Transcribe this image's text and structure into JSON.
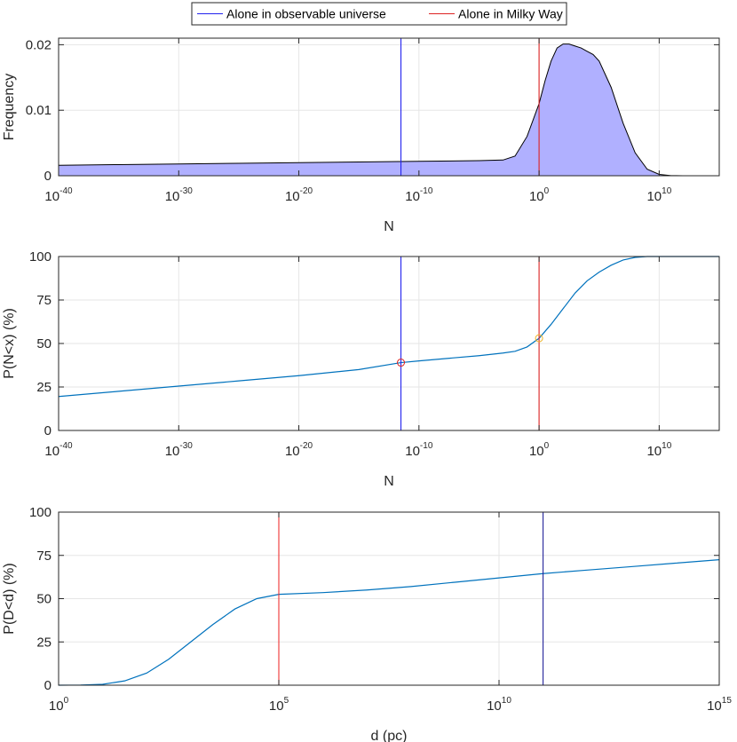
{
  "legend": {
    "items": [
      {
        "label": "Alone in observable universe",
        "color": "#2222ee"
      },
      {
        "label": "Alone in Milky Way",
        "color": "#dd2222"
      }
    ],
    "placement": "top-center"
  },
  "colors": {
    "series": "#0072bd",
    "histogram_fill": "#b0b0ff",
    "histogram_edge": "#000000",
    "grid": "#e6e6e6",
    "axes": "#262626"
  },
  "chart_data": [
    {
      "type": "area",
      "xlabel": "N",
      "ylabel": "Frequency",
      "xscale": "log",
      "xlim_exp": [
        -40,
        15
      ],
      "ylim": [
        0,
        0.021
      ],
      "yticks": [
        0,
        0.01,
        0.02
      ],
      "ytick_labels": [
        "0",
        "0.01",
        "0.02"
      ],
      "xtick_exps": [
        -40,
        -30,
        -20,
        -10,
        0,
        10
      ],
      "grid": true,
      "vlines": [
        {
          "name": "Alone in observable universe",
          "x_exp": -11.5
        },
        {
          "name": "Alone in Milky Way",
          "x_exp": 0
        }
      ],
      "x_exp": [
        -40,
        -35,
        -30,
        -25,
        -20,
        -15,
        -10,
        -5,
        -3,
        -2,
        -1,
        0,
        0.5,
        1,
        1.5,
        2,
        2.5,
        3,
        3.5,
        4,
        4.5,
        5,
        6,
        7,
        8,
        9,
        10,
        11,
        12,
        15
      ],
      "y": [
        0.0016,
        0.0017,
        0.0018,
        0.0019,
        0.002,
        0.0021,
        0.0022,
        0.0023,
        0.0024,
        0.003,
        0.006,
        0.011,
        0.0145,
        0.0175,
        0.0195,
        0.0201,
        0.0201,
        0.0198,
        0.0195,
        0.019,
        0.0185,
        0.0175,
        0.0135,
        0.008,
        0.0035,
        0.001,
        0.0002,
        2e-05,
        0,
        0
      ]
    },
    {
      "type": "line",
      "xlabel": "N",
      "ylabel": "P(N<x) (%)",
      "xscale": "log",
      "xlim_exp": [
        -40,
        15
      ],
      "ylim": [
        0,
        100
      ],
      "yticks": [
        0,
        25,
        50,
        75,
        100
      ],
      "xtick_exps": [
        -40,
        -30,
        -20,
        -10,
        0,
        10
      ],
      "grid": true,
      "vlines": [
        {
          "name": "Alone in observable universe",
          "x_exp": -11.5
        },
        {
          "name": "Alone in Milky Way",
          "x_exp": 0
        }
      ],
      "markers": [
        {
          "x_exp": -11.5,
          "y": 39,
          "color": "#dd2222"
        },
        {
          "x_exp": 0,
          "y": 53,
          "color": "#edb120"
        }
      ],
      "x_exp": [
        -40,
        -35,
        -30,
        -25,
        -20,
        -15,
        -11.5,
        -10,
        -5,
        -3,
        -2,
        -1,
        0,
        1,
        2,
        3,
        4,
        5,
        6,
        7,
        8,
        9,
        10,
        15
      ],
      "y": [
        19.5,
        22.5,
        25.5,
        28.5,
        31.5,
        35,
        39,
        40,
        43,
        44.5,
        45.5,
        48,
        53,
        61,
        70,
        79,
        86,
        91,
        95,
        98,
        99.5,
        100,
        100,
        100
      ]
    },
    {
      "type": "line",
      "xlabel": "d (pc)",
      "ylabel": "P(D<d) (%)",
      "xscale": "log",
      "xlim_exp": [
        0,
        15
      ],
      "ylim": [
        0,
        100
      ],
      "yticks": [
        0,
        25,
        50,
        75,
        100
      ],
      "xtick_exps": [
        0,
        5,
        10,
        15
      ],
      "grid": true,
      "vlines": [
        {
          "name": "Alone in Milky Way",
          "x_exp": 5
        },
        {
          "name": "Alone in observable universe",
          "x_exp": 11
        }
      ],
      "x_exp": [
        0,
        0.5,
        1,
        1.5,
        2,
        2.5,
        3,
        3.5,
        4,
        4.5,
        5,
        6,
        7,
        8,
        9,
        10,
        11,
        12,
        13,
        14,
        15
      ],
      "y": [
        0,
        0.1,
        0.5,
        2.5,
        7,
        15,
        25,
        35,
        44,
        50,
        52.5,
        53.5,
        55,
        57,
        59.5,
        62,
        64.5,
        66.5,
        68.5,
        70.5,
        72.5
      ]
    }
  ]
}
